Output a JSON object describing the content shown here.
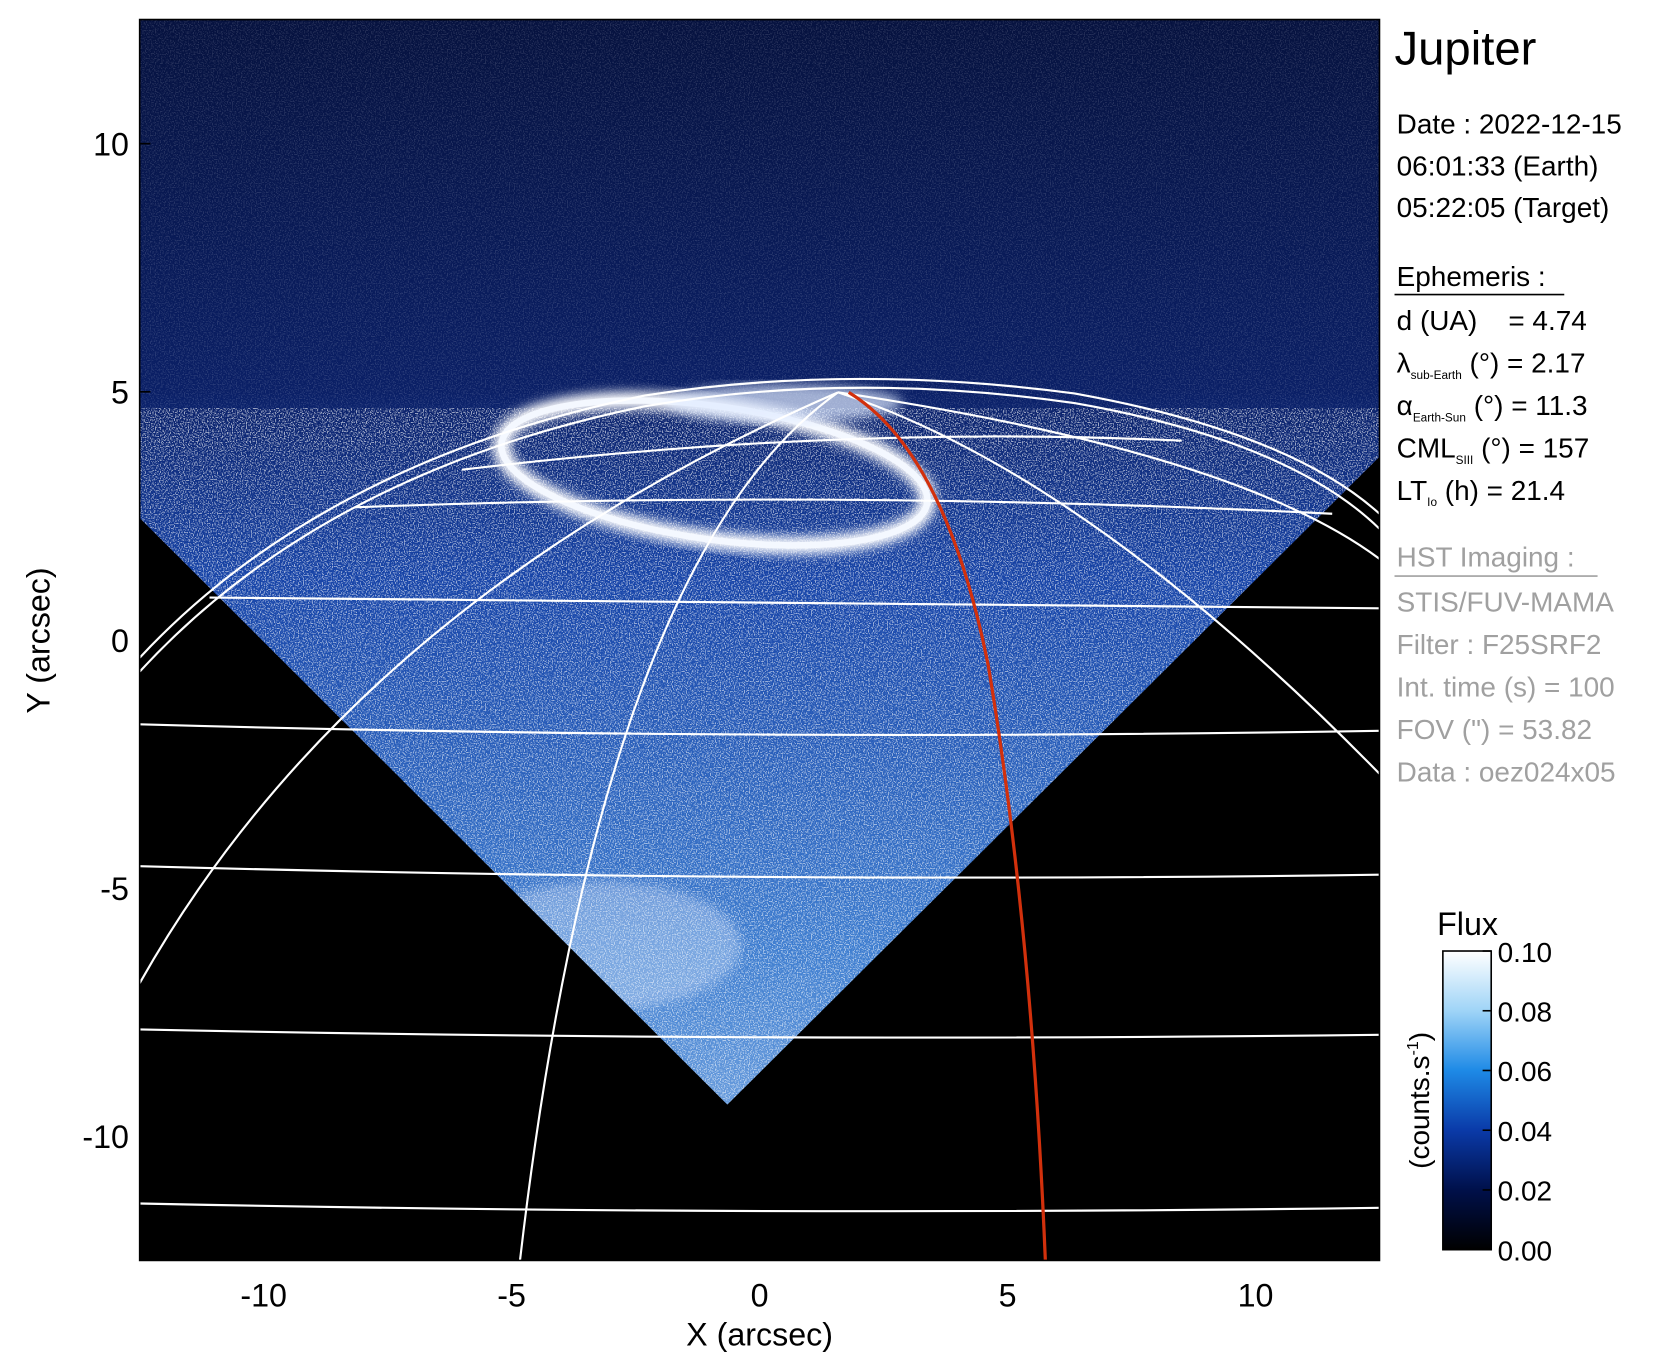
{
  "chart_data": {
    "type": "image",
    "title": "Jupiter",
    "xlabel": "X (arcsec)",
    "ylabel": "Y (arcsec)",
    "xlim": [
      -12.5,
      12.5
    ],
    "ylim": [
      -12.5,
      12.5
    ],
    "xticks": [
      -10,
      -5,
      0,
      5,
      10
    ],
    "yticks": [
      -10,
      -5,
      0,
      5,
      10
    ],
    "info": [
      "Date : 2022-12-15",
      "06:01:33 (Earth)",
      "05:22:05 (Target)"
    ],
    "ephemeris": {
      "heading": "Ephemeris :",
      "rows": [
        {
          "label": "d (UA)    = 4.74"
        },
        {
          "label": "λ",
          "sub": "sub-Earth",
          "rest": " (°) = 2.17"
        },
        {
          "label": "α",
          "sub": "Earth-Sun",
          "rest": " (°) = 11.3"
        },
        {
          "label": "CML",
          "sub": "SIII",
          "rest": " (°) = 157"
        },
        {
          "label": "LT",
          "sub": "Io",
          "rest": " (h) = 21.4"
        }
      ]
    },
    "imaging": {
      "heading": "HST Imaging :",
      "rows": [
        "STIS/FUV-MAMA",
        "Filter : F25SRF2",
        "Int. time (s) = 100",
        "FOV (\") = 53.82",
        "Data : oez024x05"
      ]
    },
    "colorbar": {
      "title": "Flux",
      "label": {
        "text": "(counts.s",
        "sup": "-1",
        "tail": ")"
      },
      "lim": [
        0,
        0.1
      ],
      "ticks": [
        {
          "value": 0,
          "label": "0.00"
        },
        0.02,
        0.04,
        0.06,
        0.08,
        {
          "value": 0.1,
          "label": "0.10"
        }
      ],
      "colors": [
        "#000000",
        "#00104a",
        "#0a3aa8",
        "#1e8ae6",
        "#9fd4f7",
        "#ffffff"
      ]
    }
  }
}
